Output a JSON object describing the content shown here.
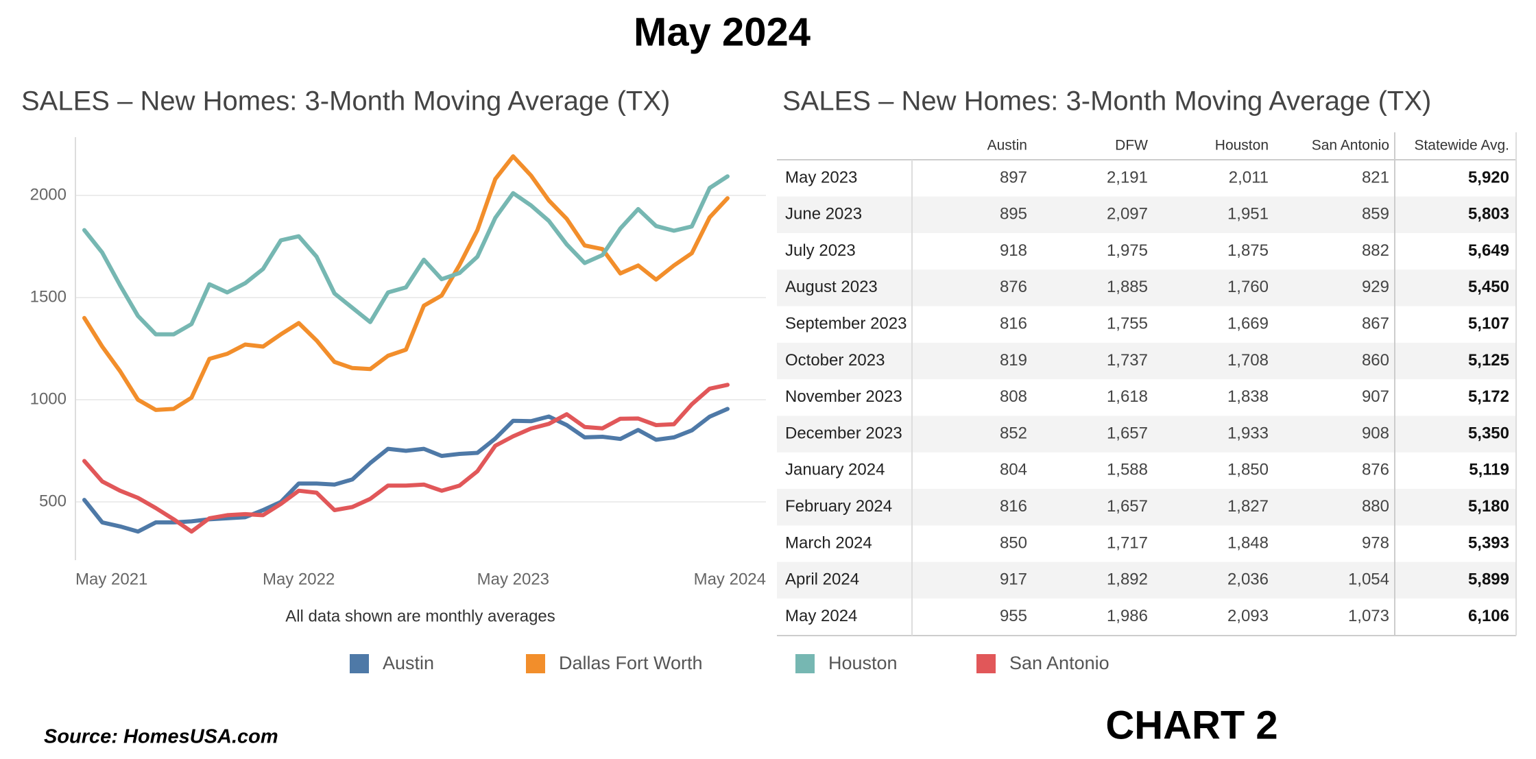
{
  "title": "May 2024",
  "chart_data": {
    "type": "line",
    "title": "SALES – New Homes: 3-Month Moving Average (TX)",
    "note": "All data shown are monthly averages",
    "categories": [
      "May 2021",
      null,
      null,
      null,
      null,
      null,
      null,
      null,
      null,
      null,
      null,
      null,
      "May 2022",
      null,
      null,
      null,
      null,
      null,
      null,
      null,
      null,
      null,
      null,
      null,
      "May 2023",
      null,
      null,
      null,
      null,
      null,
      null,
      null,
      null,
      null,
      null,
      null,
      "May 2024"
    ],
    "series": [
      {
        "name": "Austin",
        "color": "#4e79a7",
        "values": [
          510,
          400,
          380,
          355,
          400,
          400,
          405,
          415,
          420,
          425,
          460,
          500,
          590,
          590,
          585,
          610,
          690,
          760,
          750,
          760,
          725,
          735,
          740,
          810,
          897,
          895,
          918,
          876,
          816,
          819,
          808,
          852,
          804,
          816,
          850,
          917,
          955
        ]
      },
      {
        "name": "Dallas Fort Worth",
        "color": "#f28e2b",
        "values": [
          1400,
          1260,
          1140,
          1000,
          950,
          955,
          1010,
          1200,
          1225,
          1270,
          1260,
          1320,
          1375,
          1290,
          1185,
          1155,
          1150,
          1215,
          1245,
          1460,
          1510,
          1660,
          1830,
          2080,
          2191,
          2097,
          1975,
          1885,
          1755,
          1737,
          1618,
          1657,
          1588,
          1657,
          1717,
          1892,
          1986
        ]
      },
      {
        "name": "Houston",
        "color": "#76b7b2",
        "values": [
          1830,
          1720,
          1560,
          1410,
          1320,
          1320,
          1370,
          1565,
          1525,
          1570,
          1640,
          1780,
          1800,
          1700,
          1520,
          1450,
          1380,
          1525,
          1550,
          1685,
          1590,
          1620,
          1700,
          1890,
          2011,
          1951,
          1875,
          1760,
          1669,
          1708,
          1838,
          1933,
          1850,
          1827,
          1848,
          2036,
          2093
        ]
      },
      {
        "name": "San Antonio",
        "color": "#e15759",
        "values": [
          700,
          600,
          555,
          520,
          470,
          415,
          355,
          420,
          435,
          440,
          435,
          490,
          555,
          545,
          460,
          475,
          515,
          580,
          580,
          585,
          555,
          580,
          650,
          775,
          821,
          859,
          882,
          929,
          867,
          860,
          907,
          908,
          876,
          880,
          978,
          1054,
          1073
        ]
      }
    ],
    "ylim": [
      215,
      2285
    ],
    "yticks": [
      500,
      1000,
      1500,
      2000
    ],
    "grid": true
  },
  "table": {
    "title": "SALES – New Homes:  3-Month Moving Average (TX)",
    "columns": [
      "Austin",
      "DFW",
      "Houston",
      "San Antonio",
      "Statewide Avg."
    ],
    "rows": [
      [
        "May 2023",
        "897",
        "2,191",
        "2,011",
        "821",
        "5,920"
      ],
      [
        "June 2023",
        "895",
        "2,097",
        "1,951",
        "859",
        "5,803"
      ],
      [
        "July 2023",
        "918",
        "1,975",
        "1,875",
        "882",
        "5,649"
      ],
      [
        "August 2023",
        "876",
        "1,885",
        "1,760",
        "929",
        "5,450"
      ],
      [
        "September 2023",
        "816",
        "1,755",
        "1,669",
        "867",
        "5,107"
      ],
      [
        "October 2023",
        "819",
        "1,737",
        "1,708",
        "860",
        "5,125"
      ],
      [
        "November 2023",
        "808",
        "1,618",
        "1,838",
        "907",
        "5,172"
      ],
      [
        "December 2023",
        "852",
        "1,657",
        "1,933",
        "908",
        "5,350"
      ],
      [
        "January 2024",
        "804",
        "1,588",
        "1,850",
        "876",
        "5,119"
      ],
      [
        "February 2024",
        "816",
        "1,657",
        "1,827",
        "880",
        "5,180"
      ],
      [
        "March 2024",
        "850",
        "1,717",
        "1,848",
        "978",
        "5,393"
      ],
      [
        "April 2024",
        "917",
        "1,892",
        "2,036",
        "1,054",
        "5,899"
      ],
      [
        "May 2024",
        "955",
        "1,986",
        "2,093",
        "1,073",
        "6,106"
      ]
    ]
  },
  "source": "Source: HomesUSA.com",
  "label": "CHART 2"
}
